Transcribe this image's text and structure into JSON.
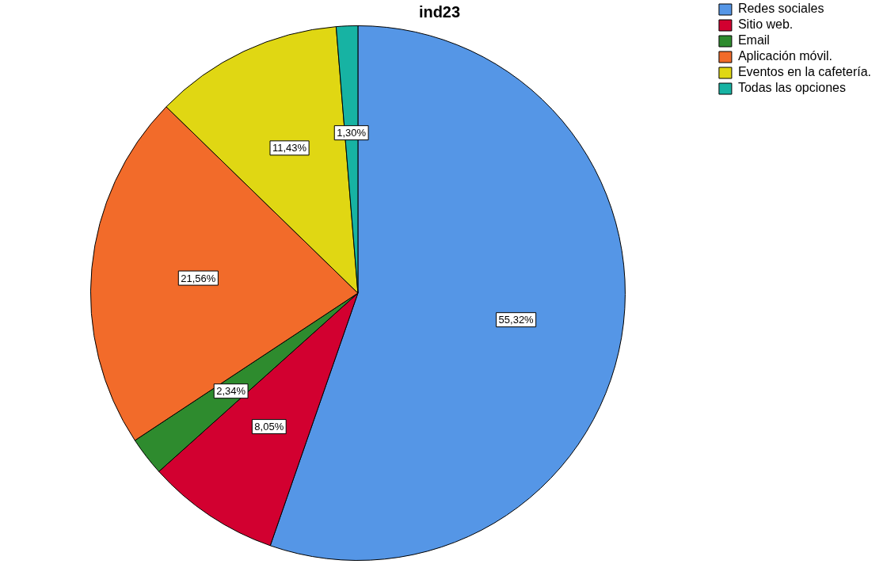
{
  "chart_data": {
    "type": "pie",
    "title": "ind23",
    "categories": [
      "Redes sociales",
      "Sitio web.",
      "Email",
      "Aplicación móvil.",
      "Eventos en la cafetería.",
      "Todas las opciones"
    ],
    "values": [
      55.32,
      8.05,
      2.34,
      21.56,
      11.43,
      1.3
    ],
    "colors": [
      "#5596e6",
      "#d20030",
      "#2e8b2e",
      "#f26b2a",
      "#e0d713",
      "#17b3a3"
    ],
    "value_labels": [
      "55,32%",
      "8,05%",
      "2,34%",
      "21,56%",
      "11,43%",
      "1,30%"
    ],
    "legend": "top right"
  }
}
